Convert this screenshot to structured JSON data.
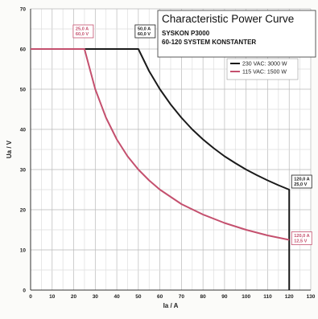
{
  "chart_data": {
    "type": "line",
    "title": "Characteristic Power Curve",
    "subtitle_lines": [
      "SYSKON P3000",
      "60-120 SYSTEM KONSTANTER"
    ],
    "xlabel": "Ia / A",
    "ylabel": "Ua / V",
    "xlim": [
      0,
      130
    ],
    "ylim": [
      0,
      70
    ],
    "x_ticks": [
      "0",
      "10",
      "20",
      "30",
      "40",
      "50",
      "60",
      "70",
      "80",
      "90",
      "100",
      "110",
      "120",
      "130"
    ],
    "y_ticks": [
      "0",
      "10",
      "20",
      "30",
      "40",
      "50",
      "60",
      "70"
    ],
    "grid": true,
    "legend_position": "top-right",
    "series": [
      {
        "name": "230 VAC: 3000 W",
        "color": "#1a1a1a",
        "points": [
          [
            0,
            60
          ],
          [
            50,
            60
          ],
          [
            55,
            54.5
          ],
          [
            60,
            50
          ],
          [
            65,
            46.2
          ],
          [
            70,
            42.9
          ],
          [
            75,
            40
          ],
          [
            80,
            37.5
          ],
          [
            85,
            35.3
          ],
          [
            90,
            33.3
          ],
          [
            95,
            31.6
          ],
          [
            100,
            30
          ],
          [
            105,
            28.6
          ],
          [
            110,
            27.3
          ],
          [
            115,
            26.1
          ],
          [
            120,
            25
          ],
          [
            120,
            0
          ]
        ]
      },
      {
        "name": "115 VAC: 1500 W",
        "color": "#c4506e",
        "points": [
          [
            0,
            60
          ],
          [
            25,
            60
          ],
          [
            30,
            50
          ],
          [
            35,
            42.9
          ],
          [
            40,
            37.5
          ],
          [
            45,
            33.3
          ],
          [
            50,
            30
          ],
          [
            55,
            27.3
          ],
          [
            60,
            25
          ],
          [
            70,
            21.4
          ],
          [
            80,
            18.8
          ],
          [
            90,
            16.7
          ],
          [
            100,
            15
          ],
          [
            110,
            13.6
          ],
          [
            120,
            12.5
          ]
        ]
      }
    ],
    "annotations": [
      {
        "lines": [
          "25,0 A",
          "60,0 V"
        ],
        "color": "#c4506e",
        "x": 25,
        "y": 60,
        "place": "above-left"
      },
      {
        "lines": [
          "50,0 A",
          "60,0 V"
        ],
        "color": "#1a1a1a",
        "x": 50,
        "y": 60,
        "place": "above-right"
      },
      {
        "lines": [
          "120,0 A",
          "25,0 V"
        ],
        "color": "#1a1a1a",
        "x": 120,
        "y": 25,
        "place": "above-right"
      },
      {
        "lines": [
          "120,0 A",
          "12,5 V"
        ],
        "color": "#c4506e",
        "x": 120,
        "y": 12.5,
        "place": "right"
      }
    ]
  }
}
